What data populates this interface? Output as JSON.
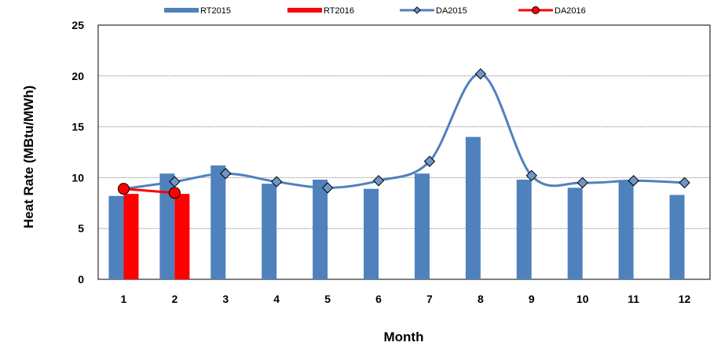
{
  "chart_data": {
    "type": "bar",
    "title": "",
    "xlabel": "Month",
    "ylabel": "Heat Rate (MBtu/MWh)",
    "ylim": [
      0,
      25
    ],
    "y_ticks": [
      0,
      5,
      10,
      15,
      20,
      25
    ],
    "categories": [
      "1",
      "2",
      "3",
      "4",
      "5",
      "6",
      "7",
      "8",
      "9",
      "10",
      "11",
      "12"
    ],
    "grid": true,
    "legend_position": "top",
    "series": [
      {
        "name": "RT2015",
        "kind": "bar",
        "color": "#4f81bd",
        "values": [
          8.2,
          10.4,
          11.2,
          9.4,
          9.8,
          8.9,
          10.4,
          14.0,
          9.8,
          9.0,
          9.6,
          8.3
        ]
      },
      {
        "name": "RT2016",
        "kind": "bar",
        "color": "#ff0000",
        "values": [
          8.4,
          8.4,
          null,
          null,
          null,
          null,
          null,
          null,
          null,
          null,
          null,
          null
        ]
      },
      {
        "name": "DA2015",
        "kind": "line",
        "color": "#4f81bd",
        "marker": "diamond",
        "values": [
          8.9,
          9.6,
          10.4,
          9.6,
          9.0,
          9.7,
          11.6,
          20.2,
          10.2,
          9.5,
          9.7,
          9.5
        ]
      },
      {
        "name": "DA2016",
        "kind": "line",
        "color": "#ff0000",
        "marker": "circle",
        "values": [
          8.9,
          8.5,
          null,
          null,
          null,
          null,
          null,
          null,
          null,
          null,
          null,
          null
        ]
      }
    ]
  }
}
